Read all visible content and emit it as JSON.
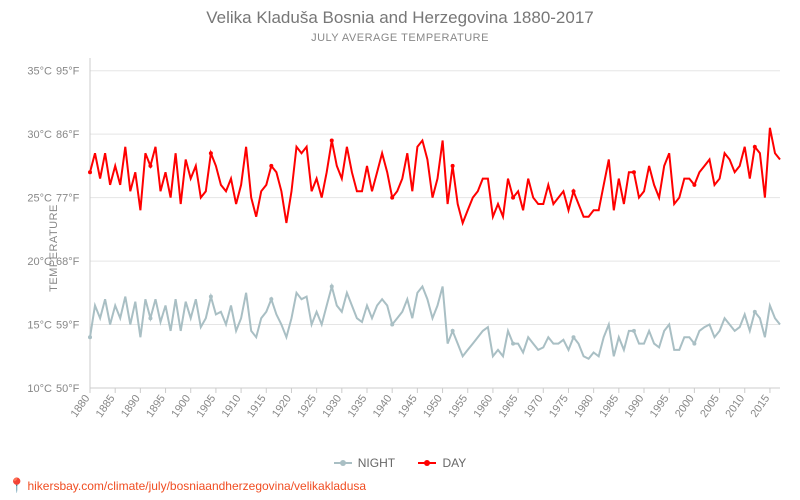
{
  "title": "Velika Kladuša Bosnia and Herzegovina 1880-2017",
  "subtitle": "JULY AVERAGE TEMPERATURE",
  "ylabel": "TEMPERATURE",
  "source_url": "hikersbay.com/climate/july/bosniaandherzegovina/velikakladusa",
  "chart": {
    "type": "line",
    "background_color": "#ffffff",
    "grid_color": "#e5e5e5",
    "text_color": "#888888",
    "title_fontsize": 17,
    "subtitle_fontsize": 11,
    "label_fontsize": 11,
    "tick_fontsize": 11,
    "line_width": 2,
    "marker_radius": 2,
    "x": {
      "min": 1880,
      "max": 2017,
      "tick_step": 5
    },
    "y": {
      "min": 10,
      "max": 36,
      "tick_step": 5,
      "unit_c": "°C",
      "unit_f": "°F"
    },
    "y_ticks_c": [
      10,
      15,
      20,
      25,
      30,
      35
    ],
    "y_ticks_f": [
      50,
      59,
      68,
      77,
      86,
      95
    ],
    "x_ticks": [
      1880,
      1885,
      1890,
      1895,
      1900,
      1905,
      1910,
      1915,
      1920,
      1925,
      1930,
      1935,
      1940,
      1945,
      1950,
      1955,
      1960,
      1965,
      1970,
      1975,
      1980,
      1985,
      1990,
      1995,
      2000,
      2005,
      2010,
      2015
    ],
    "series": [
      {
        "id": "night",
        "label": "NIGHT",
        "color": "#a9bfc4",
        "marker": "circle",
        "data": [
          [
            1880,
            14.0
          ],
          [
            1881,
            16.5
          ],
          [
            1882,
            15.5
          ],
          [
            1883,
            17.0
          ],
          [
            1884,
            15.0
          ],
          [
            1885,
            16.5
          ],
          [
            1886,
            15.5
          ],
          [
            1887,
            17.2
          ],
          [
            1888,
            15.0
          ],
          [
            1889,
            16.8
          ],
          [
            1890,
            14.0
          ],
          [
            1891,
            17.0
          ],
          [
            1892,
            15.5
          ],
          [
            1893,
            17.0
          ],
          [
            1894,
            15.2
          ],
          [
            1895,
            16.5
          ],
          [
            1896,
            14.5
          ],
          [
            1897,
            17.0
          ],
          [
            1898,
            14.5
          ],
          [
            1899,
            16.8
          ],
          [
            1900,
            15.5
          ],
          [
            1901,
            17.0
          ],
          [
            1902,
            14.8
          ],
          [
            1903,
            15.5
          ],
          [
            1904,
            17.2
          ],
          [
            1905,
            15.8
          ],
          [
            1906,
            16.0
          ],
          [
            1907,
            15.0
          ],
          [
            1908,
            16.5
          ],
          [
            1909,
            14.5
          ],
          [
            1910,
            15.5
          ],
          [
            1911,
            17.5
          ],
          [
            1912,
            14.5
          ],
          [
            1913,
            14.0
          ],
          [
            1914,
            15.5
          ],
          [
            1915,
            16.0
          ],
          [
            1916,
            17.0
          ],
          [
            1917,
            15.8
          ],
          [
            1918,
            15.0
          ],
          [
            1919,
            14.0
          ],
          [
            1920,
            15.5
          ],
          [
            1921,
            17.5
          ],
          [
            1922,
            17.0
          ],
          [
            1923,
            17.2
          ],
          [
            1924,
            15.0
          ],
          [
            1925,
            16.0
          ],
          [
            1926,
            15.0
          ],
          [
            1927,
            16.5
          ],
          [
            1928,
            18.0
          ],
          [
            1929,
            16.5
          ],
          [
            1930,
            16.0
          ],
          [
            1931,
            17.5
          ],
          [
            1932,
            16.5
          ],
          [
            1933,
            15.5
          ],
          [
            1934,
            15.2
          ],
          [
            1935,
            16.5
          ],
          [
            1936,
            15.5
          ],
          [
            1937,
            16.5
          ],
          [
            1938,
            17.0
          ],
          [
            1939,
            16.5
          ],
          [
            1940,
            15.0
          ],
          [
            1941,
            15.5
          ],
          [
            1942,
            16.0
          ],
          [
            1943,
            17.0
          ],
          [
            1944,
            15.5
          ],
          [
            1945,
            17.5
          ],
          [
            1946,
            18.0
          ],
          [
            1947,
            17.0
          ],
          [
            1948,
            15.5
          ],
          [
            1949,
            16.5
          ],
          [
            1950,
            18.0
          ],
          [
            1951,
            13.5
          ],
          [
            1952,
            14.5
          ],
          [
            1953,
            13.5
          ],
          [
            1954,
            12.5
          ],
          [
            1955,
            13.0
          ],
          [
            1956,
            13.5
          ],
          [
            1957,
            14.0
          ],
          [
            1958,
            14.5
          ],
          [
            1959,
            14.8
          ],
          [
            1960,
            12.5
          ],
          [
            1961,
            13.0
          ],
          [
            1962,
            12.5
          ],
          [
            1963,
            14.5
          ],
          [
            1964,
            13.5
          ],
          [
            1965,
            13.5
          ],
          [
            1966,
            12.8
          ],
          [
            1967,
            14.0
          ],
          [
            1968,
            13.5
          ],
          [
            1969,
            13.0
          ],
          [
            1970,
            13.2
          ],
          [
            1971,
            14.0
          ],
          [
            1972,
            13.5
          ],
          [
            1973,
            13.5
          ],
          [
            1974,
            13.8
          ],
          [
            1975,
            13.0
          ],
          [
            1976,
            14.0
          ],
          [
            1977,
            13.5
          ],
          [
            1978,
            12.5
          ],
          [
            1979,
            12.3
          ],
          [
            1980,
            12.8
          ],
          [
            1981,
            12.5
          ],
          [
            1982,
            14.0
          ],
          [
            1983,
            15.0
          ],
          [
            1984,
            12.5
          ],
          [
            1985,
            14.0
          ],
          [
            1986,
            13.0
          ],
          [
            1987,
            14.5
          ],
          [
            1988,
            14.5
          ],
          [
            1989,
            13.5
          ],
          [
            1990,
            13.5
          ],
          [
            1991,
            14.5
          ],
          [
            1992,
            13.5
          ],
          [
            1993,
            13.2
          ],
          [
            1994,
            14.5
          ],
          [
            1995,
            15.0
          ],
          [
            1996,
            13.0
          ],
          [
            1997,
            13.0
          ],
          [
            1998,
            14.0
          ],
          [
            1999,
            14.0
          ],
          [
            2000,
            13.5
          ],
          [
            2001,
            14.5
          ],
          [
            2002,
            14.8
          ],
          [
            2003,
            15.0
          ],
          [
            2004,
            14.0
          ],
          [
            2005,
            14.5
          ],
          [
            2006,
            15.5
          ],
          [
            2007,
            15.0
          ],
          [
            2008,
            14.5
          ],
          [
            2009,
            14.8
          ],
          [
            2010,
            15.8
          ],
          [
            2011,
            14.5
          ],
          [
            2012,
            16.0
          ],
          [
            2013,
            15.5
          ],
          [
            2014,
            14.0
          ],
          [
            2015,
            16.5
          ],
          [
            2016,
            15.5
          ],
          [
            2017,
            15.0
          ]
        ]
      },
      {
        "id": "day",
        "label": "DAY",
        "color": "#ff0000",
        "marker": "circle",
        "data": [
          [
            1880,
            27.0
          ],
          [
            1881,
            28.5
          ],
          [
            1882,
            26.5
          ],
          [
            1883,
            28.5
          ],
          [
            1884,
            26.0
          ],
          [
            1885,
            27.5
          ],
          [
            1886,
            26.0
          ],
          [
            1887,
            29.0
          ],
          [
            1888,
            25.5
          ],
          [
            1889,
            27.0
          ],
          [
            1890,
            24.0
          ],
          [
            1891,
            28.5
          ],
          [
            1892,
            27.5
          ],
          [
            1893,
            29.0
          ],
          [
            1894,
            25.5
          ],
          [
            1895,
            27.0
          ],
          [
            1896,
            25.0
          ],
          [
            1897,
            28.5
          ],
          [
            1898,
            24.5
          ],
          [
            1899,
            28.0
          ],
          [
            1900,
            26.5
          ],
          [
            1901,
            27.5
          ],
          [
            1902,
            25.0
          ],
          [
            1903,
            25.5
          ],
          [
            1904,
            28.5
          ],
          [
            1905,
            27.5
          ],
          [
            1906,
            26.0
          ],
          [
            1907,
            25.5
          ],
          [
            1908,
            26.5
          ],
          [
            1909,
            24.5
          ],
          [
            1910,
            26.0
          ],
          [
            1911,
            29.0
          ],
          [
            1912,
            25.0
          ],
          [
            1913,
            23.5
          ],
          [
            1914,
            25.5
          ],
          [
            1915,
            26.0
          ],
          [
            1916,
            27.5
          ],
          [
            1917,
            27.0
          ],
          [
            1918,
            25.5
          ],
          [
            1919,
            23.0
          ],
          [
            1920,
            25.5
          ],
          [
            1921,
            29.0
          ],
          [
            1922,
            28.5
          ],
          [
            1923,
            29.0
          ],
          [
            1924,
            25.5
          ],
          [
            1925,
            26.5
          ],
          [
            1926,
            25.0
          ],
          [
            1927,
            27.0
          ],
          [
            1928,
            29.5
          ],
          [
            1929,
            27.5
          ],
          [
            1930,
            26.5
          ],
          [
            1931,
            29.0
          ],
          [
            1932,
            27.0
          ],
          [
            1933,
            25.5
          ],
          [
            1934,
            25.5
          ],
          [
            1935,
            27.5
          ],
          [
            1936,
            25.5
          ],
          [
            1937,
            27.0
          ],
          [
            1938,
            28.5
          ],
          [
            1939,
            27.0
          ],
          [
            1940,
            25.0
          ],
          [
            1941,
            25.5
          ],
          [
            1942,
            26.5
          ],
          [
            1943,
            28.5
          ],
          [
            1944,
            25.5
          ],
          [
            1945,
            29.0
          ],
          [
            1946,
            29.5
          ],
          [
            1947,
            28.0
          ],
          [
            1948,
            25.0
          ],
          [
            1949,
            26.5
          ],
          [
            1950,
            29.5
          ],
          [
            1951,
            24.5
          ],
          [
            1952,
            27.5
          ],
          [
            1953,
            24.5
          ],
          [
            1954,
            23.0
          ],
          [
            1955,
            24.0
          ],
          [
            1956,
            25.0
          ],
          [
            1957,
            25.5
          ],
          [
            1958,
            26.5
          ],
          [
            1959,
            26.5
          ],
          [
            1960,
            23.5
          ],
          [
            1961,
            24.5
          ],
          [
            1962,
            23.5
          ],
          [
            1963,
            26.5
          ],
          [
            1964,
            25.0
          ],
          [
            1965,
            25.5
          ],
          [
            1966,
            24.0
          ],
          [
            1967,
            26.5
          ],
          [
            1968,
            25.0
          ],
          [
            1969,
            24.5
          ],
          [
            1970,
            24.5
          ],
          [
            1971,
            26.0
          ],
          [
            1972,
            24.5
          ],
          [
            1973,
            25.0
          ],
          [
            1974,
            25.5
          ],
          [
            1975,
            24.0
          ],
          [
            1976,
            25.5
          ],
          [
            1977,
            24.5
          ],
          [
            1978,
            23.5
          ],
          [
            1979,
            23.5
          ],
          [
            1980,
            24.0
          ],
          [
            1981,
            24.0
          ],
          [
            1982,
            26.0
          ],
          [
            1983,
            28.0
          ],
          [
            1984,
            24.0
          ],
          [
            1985,
            26.5
          ],
          [
            1986,
            24.5
          ],
          [
            1987,
            27.0
          ],
          [
            1988,
            27.0
          ],
          [
            1989,
            25.0
          ],
          [
            1990,
            25.5
          ],
          [
            1991,
            27.5
          ],
          [
            1992,
            26.0
          ],
          [
            1993,
            25.0
          ],
          [
            1994,
            27.5
          ],
          [
            1995,
            28.5
          ],
          [
            1996,
            24.5
          ],
          [
            1997,
            25.0
          ],
          [
            1998,
            26.5
          ],
          [
            1999,
            26.5
          ],
          [
            2000,
            26.0
          ],
          [
            2001,
            27.0
          ],
          [
            2002,
            27.5
          ],
          [
            2003,
            28.0
          ],
          [
            2004,
            26.0
          ],
          [
            2005,
            26.5
          ],
          [
            2006,
            28.5
          ],
          [
            2007,
            28.0
          ],
          [
            2008,
            27.0
          ],
          [
            2009,
            27.5
          ],
          [
            2010,
            29.0
          ],
          [
            2011,
            26.5
          ],
          [
            2012,
            29.0
          ],
          [
            2013,
            28.5
          ],
          [
            2014,
            25.0
          ],
          [
            2015,
            30.5
          ],
          [
            2016,
            28.5
          ],
          [
            2017,
            28.0
          ]
        ]
      }
    ]
  },
  "legend": {
    "night": "NIGHT",
    "day": "DAY"
  }
}
